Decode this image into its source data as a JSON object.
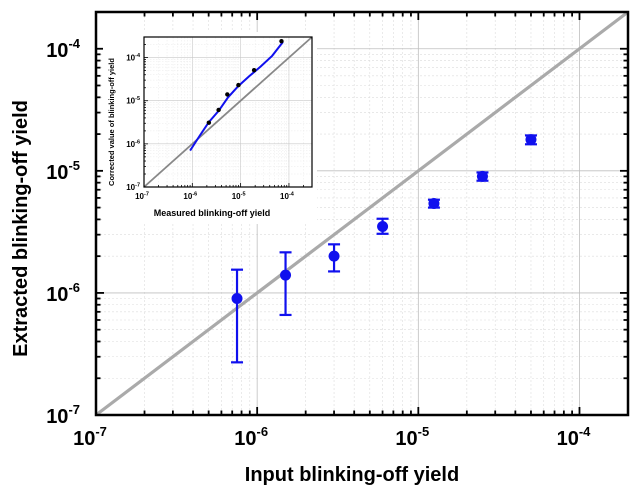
{
  "chart_data": [
    {
      "type": "scatter",
      "xlabel": "Input blinking-off yield",
      "ylabel": "Extracted blinking-off yield",
      "x_scale": "log",
      "y_scale": "log",
      "xlim": [
        1e-07,
        0.0002
      ],
      "ylim": [
        1e-07,
        0.0002
      ],
      "grid": true,
      "x_tick_labels": [
        {
          "value": 1e-07,
          "base": "10",
          "exp": "-7"
        },
        {
          "value": 1e-06,
          "base": "10",
          "exp": "-6"
        },
        {
          "value": 1e-05,
          "base": "10",
          "exp": "-5"
        },
        {
          "value": 0.0001,
          "base": "10",
          "exp": "-4"
        }
      ],
      "y_tick_labels": [
        {
          "value": 1e-07,
          "base": "10",
          "exp": "-7"
        },
        {
          "value": 1e-06,
          "base": "10",
          "exp": "-6"
        },
        {
          "value": 1e-05,
          "base": "10",
          "exp": "-5"
        },
        {
          "value": 0.0001,
          "base": "10",
          "exp": "-4"
        }
      ],
      "reference_line": {
        "type": "y=x",
        "color": "#aaaaaa"
      },
      "series": [
        {
          "color": "#1010ee",
          "points": [
            {
              "x": 7.5e-07,
              "y": 9e-07,
              "y_low": 2.7e-07,
              "y_high": 1.55e-06
            },
            {
              "x": 1.5e-06,
              "y": 1.4e-06,
              "y_low": 6.6e-07,
              "y_high": 2.15e-06
            },
            {
              "x": 3e-06,
              "y": 2e-06,
              "y_low": 1.5e-06,
              "y_high": 2.5e-06
            },
            {
              "x": 6e-06,
              "y": 3.5e-06,
              "y_low": 3.05e-06,
              "y_high": 4.05e-06
            },
            {
              "x": 1.25e-05,
              "y": 5.4e-06,
              "y_low": 5e-06,
              "y_high": 5.8e-06
            },
            {
              "x": 2.5e-05,
              "y": 9e-06,
              "y_low": 8.3e-06,
              "y_high": 9.7e-06
            },
            {
              "x": 5e-05,
              "y": 1.8e-05,
              "y_low": 1.65e-05,
              "y_high": 1.95e-05
            }
          ]
        }
      ]
    },
    {
      "type": "line",
      "xlabel": "Measured blinking-off yield",
      "ylabel": "Corrected value of blinking-off yield",
      "x_scale": "log",
      "y_scale": "log",
      "xlim": [
        1e-07,
        0.0003
      ],
      "ylim": [
        1e-07,
        0.0003
      ],
      "grid": true,
      "x_tick_labels": [
        {
          "value": 1e-07,
          "base": "10",
          "exp": "-7"
        },
        {
          "value": 1e-06,
          "base": "10",
          "exp": "-6"
        },
        {
          "value": 1e-05,
          "base": "10",
          "exp": "-5"
        },
        {
          "value": 0.0001,
          "base": "10",
          "exp": "-4"
        }
      ],
      "y_tick_labels": [
        {
          "value": 1e-07,
          "base": "10",
          "exp": "-7"
        },
        {
          "value": 1e-06,
          "base": "10",
          "exp": "-6"
        },
        {
          "value": 1e-05,
          "base": "10",
          "exp": "-5"
        },
        {
          "value": 0.0001,
          "base": "10",
          "exp": "-4"
        }
      ],
      "reference_line": {
        "type": "y=x",
        "color": "#888888"
      },
      "series": [
        {
          "color": "#1010ee",
          "x": [
            9e-07,
            1.4e-06,
            2.2e-06,
            3.5e-06,
            5.5e-06,
            9e-06,
            1.5e-05,
            2.6e-05,
            4.5e-05,
            7.5e-05
          ],
          "y": [
            7e-07,
            1.5e-06,
            3.2e-06,
            5.8e-06,
            1.2e-05,
            2.2e-05,
            3.7e-05,
            6.2e-05,
            0.00011,
            0.00023
          ]
        },
        {
          "color": "#000000",
          "x": [
            2.2e-06,
            3.5e-06,
            5.3e-06,
            9e-06,
            1.9e-05,
            7e-05
          ],
          "y": [
            3.1e-06,
            6.1e-06,
            1.4e-05,
            2.3e-05,
            5.1e-05,
            0.00024
          ]
        }
      ]
    }
  ]
}
